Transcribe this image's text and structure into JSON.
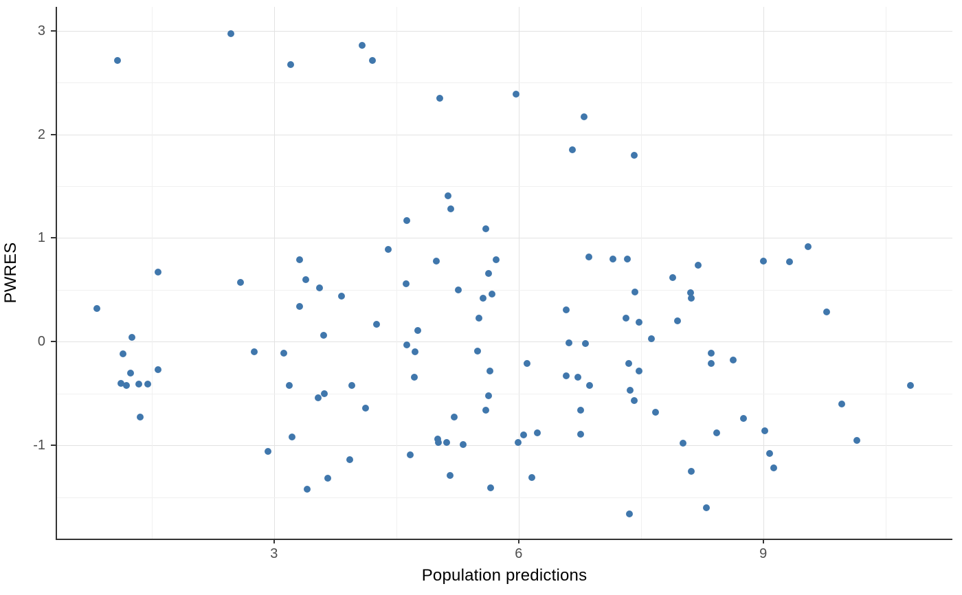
{
  "chart_data": {
    "type": "scatter",
    "title": "",
    "xlabel": "Population predictions",
    "ylabel": "PWRES",
    "xlim": [
      0.33,
      11.32
    ],
    "ylim": [
      -1.9,
      3.23
    ],
    "x_major_ticks": [
      3,
      6,
      9
    ],
    "x_minor_gridlines": [
      1.5,
      4.5,
      7.5,
      10.5
    ],
    "y_major_ticks": [
      -1,
      0,
      1,
      2,
      3
    ],
    "y_minor_gridlines": [
      -1.5,
      -0.5,
      0.5,
      1.5,
      2.5
    ],
    "grid": "major-and-minor",
    "legend_position": "none",
    "series": [
      {
        "name": "PWRES vs population predictions",
        "points": [
          [
            2.47,
            2.97
          ],
          [
            1.08,
            2.71
          ],
          [
            3.2,
            2.67
          ],
          [
            4.08,
            2.86
          ],
          [
            4.21,
            2.71
          ],
          [
            5.03,
            2.35
          ],
          [
            5.97,
            2.39
          ],
          [
            6.8,
            2.17
          ],
          [
            6.66,
            1.85
          ],
          [
            7.42,
            1.8
          ],
          [
            5.13,
            1.41
          ],
          [
            5.17,
            1.28
          ],
          [
            4.63,
            1.17
          ],
          [
            5.6,
            1.09
          ],
          [
            4.4,
            0.89
          ],
          [
            4.99,
            0.78
          ],
          [
            5.72,
            0.79
          ],
          [
            5.63,
            0.66
          ],
          [
            4.62,
            0.56
          ],
          [
            5.26,
            0.5
          ],
          [
            5.67,
            0.46
          ],
          [
            5.56,
            0.42
          ],
          [
            5.51,
            0.23
          ],
          [
            4.26,
            0.17
          ],
          [
            4.76,
            0.11
          ],
          [
            4.63,
            -0.03
          ],
          [
            4.73,
            -0.1
          ],
          [
            5.5,
            -0.09
          ],
          [
            6.86,
            0.82
          ],
          [
            7.16,
            0.8
          ],
          [
            7.33,
            0.8
          ],
          [
            7.43,
            0.48
          ],
          [
            6.58,
            0.31
          ],
          [
            7.32,
            0.23
          ],
          [
            7.48,
            0.19
          ],
          [
            7.63,
            0.03
          ],
          [
            6.62,
            -0.01
          ],
          [
            6.82,
            -0.02
          ],
          [
            9.55,
            0.92
          ],
          [
            9.0,
            0.78
          ],
          [
            9.32,
            0.77
          ],
          [
            8.2,
            0.74
          ],
          [
            7.89,
            0.62
          ],
          [
            8.11,
            0.47
          ],
          [
            8.12,
            0.42
          ],
          [
            7.95,
            0.2
          ],
          [
            9.78,
            0.29
          ],
          [
            8.36,
            -0.11
          ],
          [
            1.58,
            0.67
          ],
          [
            2.59,
            0.57
          ],
          [
            3.31,
            0.79
          ],
          [
            3.39,
            0.6
          ],
          [
            3.56,
            0.52
          ],
          [
            3.83,
            0.44
          ],
          [
            3.31,
            0.34
          ],
          [
            0.83,
            0.32
          ],
          [
            3.61,
            0.06
          ],
          [
            1.26,
            0.04
          ],
          [
            1.15,
            -0.12
          ],
          [
            2.76,
            -0.1
          ],
          [
            3.12,
            -0.11
          ],
          [
            1.24,
            -0.3
          ],
          [
            1.12,
            -0.4
          ],
          [
            1.19,
            -0.42
          ],
          [
            1.34,
            -0.41
          ],
          [
            1.45,
            -0.41
          ],
          [
            1.58,
            -0.27
          ],
          [
            1.36,
            -0.73
          ],
          [
            2.93,
            -1.06
          ],
          [
            3.19,
            -0.42
          ],
          [
            3.54,
            -0.54
          ],
          [
            3.62,
            -0.5
          ],
          [
            3.95,
            -0.42
          ],
          [
            3.22,
            -0.92
          ],
          [
            3.93,
            -1.14
          ],
          [
            3.66,
            -1.32
          ],
          [
            3.41,
            -1.42
          ],
          [
            4.72,
            -0.34
          ],
          [
            5.65,
            -0.28
          ],
          [
            6.1,
            -0.21
          ],
          [
            6.58,
            -0.33
          ],
          [
            6.73,
            -0.34
          ],
          [
            6.87,
            -0.42
          ],
          [
            7.35,
            -0.21
          ],
          [
            7.48,
            -0.28
          ],
          [
            7.37,
            -0.47
          ],
          [
            7.42,
            -0.57
          ],
          [
            7.68,
            -0.68
          ],
          [
            5.63,
            -0.52
          ],
          [
            5.6,
            -0.66
          ],
          [
            5.21,
            -0.73
          ],
          [
            4.12,
            -0.64
          ],
          [
            5.01,
            -0.94
          ],
          [
            5.02,
            -0.97
          ],
          [
            5.12,
            -0.97
          ],
          [
            5.32,
            -0.99
          ],
          [
            5.99,
            -0.97
          ],
          [
            6.06,
            -0.9
          ],
          [
            6.23,
            -0.88
          ],
          [
            6.76,
            -0.89
          ],
          [
            6.76,
            -0.66
          ],
          [
            4.67,
            -1.09
          ],
          [
            5.16,
            -1.29
          ],
          [
            6.16,
            -1.31
          ],
          [
            5.66,
            -1.41
          ],
          [
            7.36,
            -1.66
          ],
          [
            8.36,
            -0.21
          ],
          [
            8.63,
            -0.18
          ],
          [
            10.81,
            -0.42
          ],
          [
            9.96,
            -0.6
          ],
          [
            8.76,
            -0.74
          ],
          [
            8.43,
            -0.88
          ],
          [
            9.02,
            -0.86
          ],
          [
            8.02,
            -0.98
          ],
          [
            10.15,
            -0.95
          ],
          [
            9.08,
            -1.08
          ],
          [
            9.13,
            -1.22
          ],
          [
            8.12,
            -1.25
          ],
          [
            8.3,
            -1.6
          ]
        ]
      }
    ]
  },
  "style": {
    "point_color": "#4077AC",
    "major_grid_color": "#E2E2E2",
    "minor_grid_color": "#F0F0F0",
    "axis_line_color": "#333333",
    "tick_label_color": "#4D4D4D",
    "axis_title_color": "#000000",
    "background_color": "#FFFFFF"
  }
}
